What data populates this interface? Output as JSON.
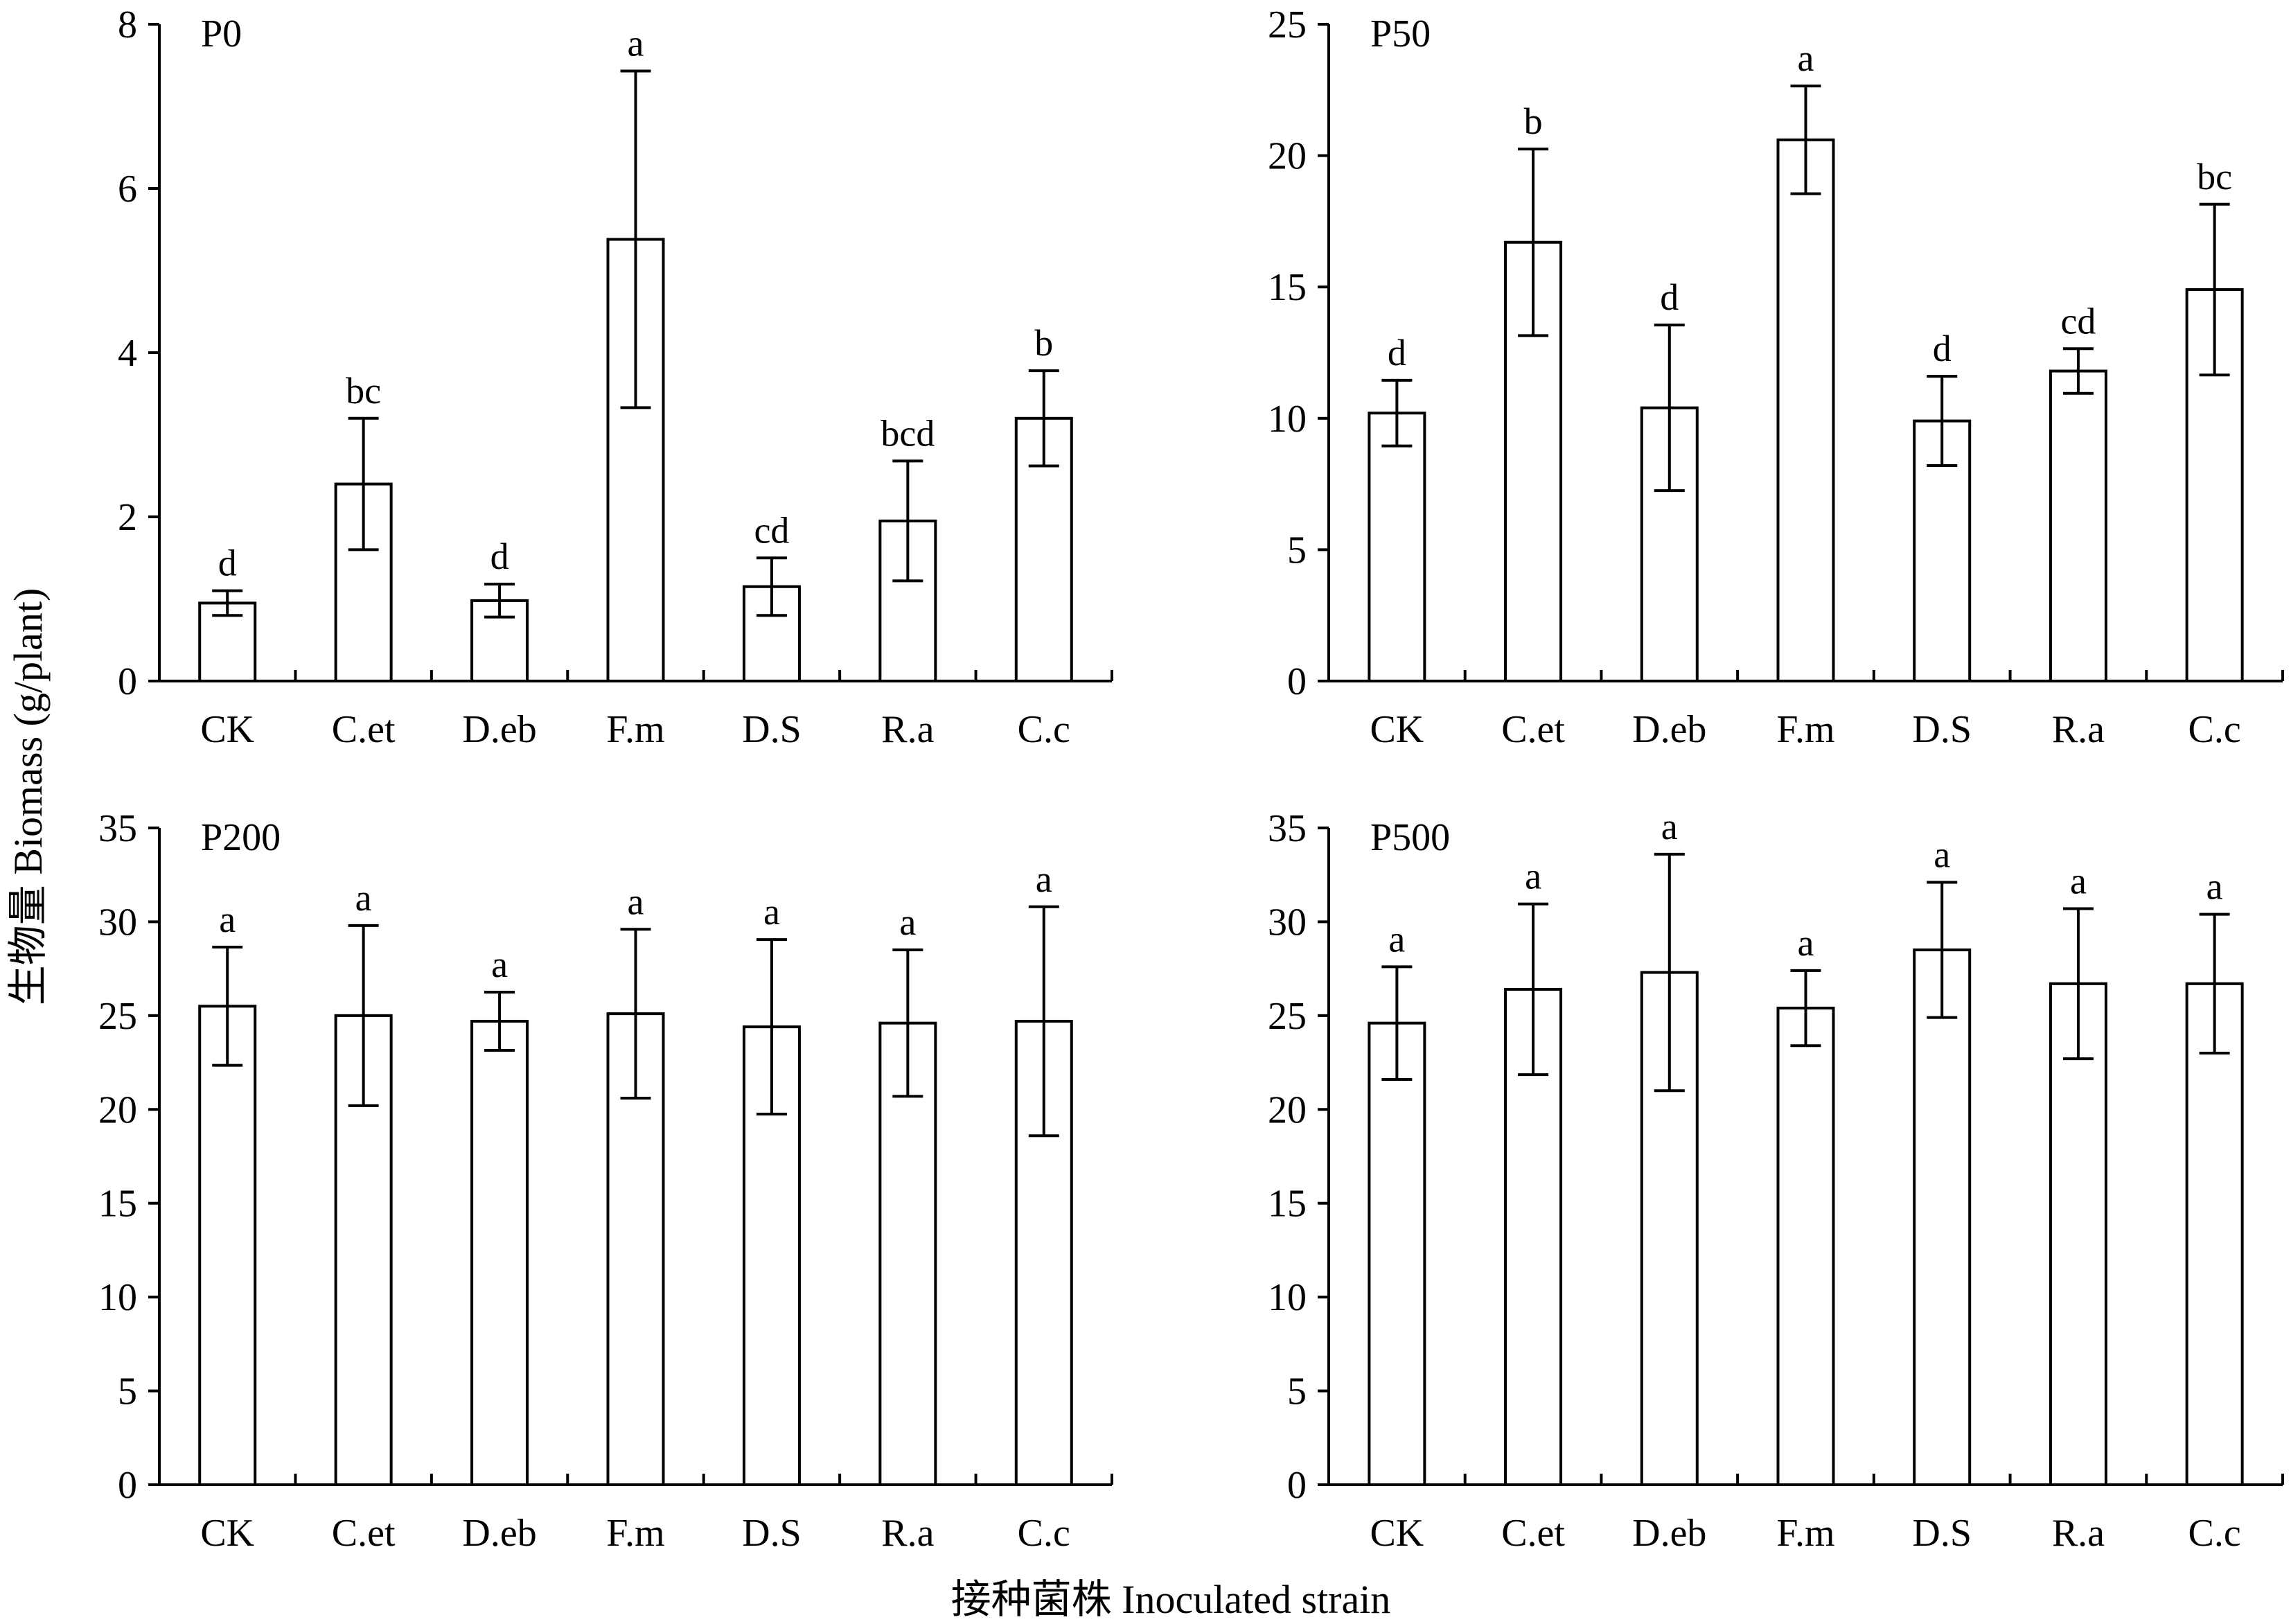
{
  "figure": {
    "ylabel": "生物量 Biomass (g/plant)",
    "xlabel": "接种菌株 Inoculated strain"
  },
  "chart_data": [
    {
      "type": "bar",
      "title": "P0",
      "categories": [
        "CK",
        "C.et",
        "D.eb",
        "F.m",
        "D.S",
        "R.a",
        "C.c"
      ],
      "values": [
        0.95,
        2.4,
        0.98,
        5.38,
        1.15,
        1.95,
        3.2
      ],
      "errors": [
        0.15,
        0.8,
        0.2,
        2.05,
        0.35,
        0.73,
        0.58
      ],
      "significance": [
        "d",
        "bc",
        "d",
        "a",
        "cd",
        "bcd",
        "b"
      ],
      "ylim": [
        0,
        8
      ],
      "yticks": [
        0,
        2,
        4,
        6,
        8
      ],
      "xlabel": "",
      "ylabel": ""
    },
    {
      "type": "bar",
      "title": "P50",
      "categories": [
        "CK",
        "C.et",
        "D.eb",
        "F.m",
        "D.S",
        "R.a",
        "C.c"
      ],
      "values": [
        10.2,
        16.7,
        10.4,
        20.6,
        9.9,
        11.8,
        14.9
      ],
      "errors": [
        1.25,
        3.55,
        3.15,
        2.05,
        1.7,
        0.85,
        3.25
      ],
      "significance": [
        "d",
        "b",
        "d",
        "a",
        "d",
        "cd",
        "bc"
      ],
      "ylim": [
        0,
        25
      ],
      "yticks": [
        0,
        5,
        10,
        15,
        20,
        25
      ],
      "xlabel": "",
      "ylabel": ""
    },
    {
      "type": "bar",
      "title": "P200",
      "categories": [
        "CK",
        "C.et",
        "D.eb",
        "F.m",
        "D.S",
        "R.a",
        "C.c"
      ],
      "values": [
        25.5,
        25.0,
        24.7,
        25.1,
        24.4,
        24.6,
        24.7
      ],
      "errors": [
        3.15,
        4.8,
        1.55,
        4.5,
        4.65,
        3.9,
        6.1
      ],
      "significance": [
        "a",
        "a",
        "a",
        "a",
        "a",
        "a",
        "a"
      ],
      "ylim": [
        0,
        35
      ],
      "yticks": [
        0,
        5,
        10,
        15,
        20,
        25,
        30,
        35
      ],
      "xlabel": "",
      "ylabel": ""
    },
    {
      "type": "bar",
      "title": "P500",
      "categories": [
        "CK",
        "C.et",
        "D.eb",
        "F.m",
        "D.S",
        "R.a",
        "C.c"
      ],
      "values": [
        24.6,
        26.4,
        27.3,
        25.4,
        28.5,
        26.7,
        26.7
      ],
      "errors": [
        3.0,
        4.55,
        6.3,
        2.0,
        3.6,
        4.0,
        3.7
      ],
      "significance": [
        "a",
        "a",
        "a",
        "a",
        "a",
        "a",
        "a"
      ],
      "ylim": [
        0,
        35
      ],
      "yticks": [
        0,
        5,
        10,
        15,
        20,
        25,
        30,
        35
      ],
      "xlabel": "",
      "ylabel": ""
    }
  ]
}
